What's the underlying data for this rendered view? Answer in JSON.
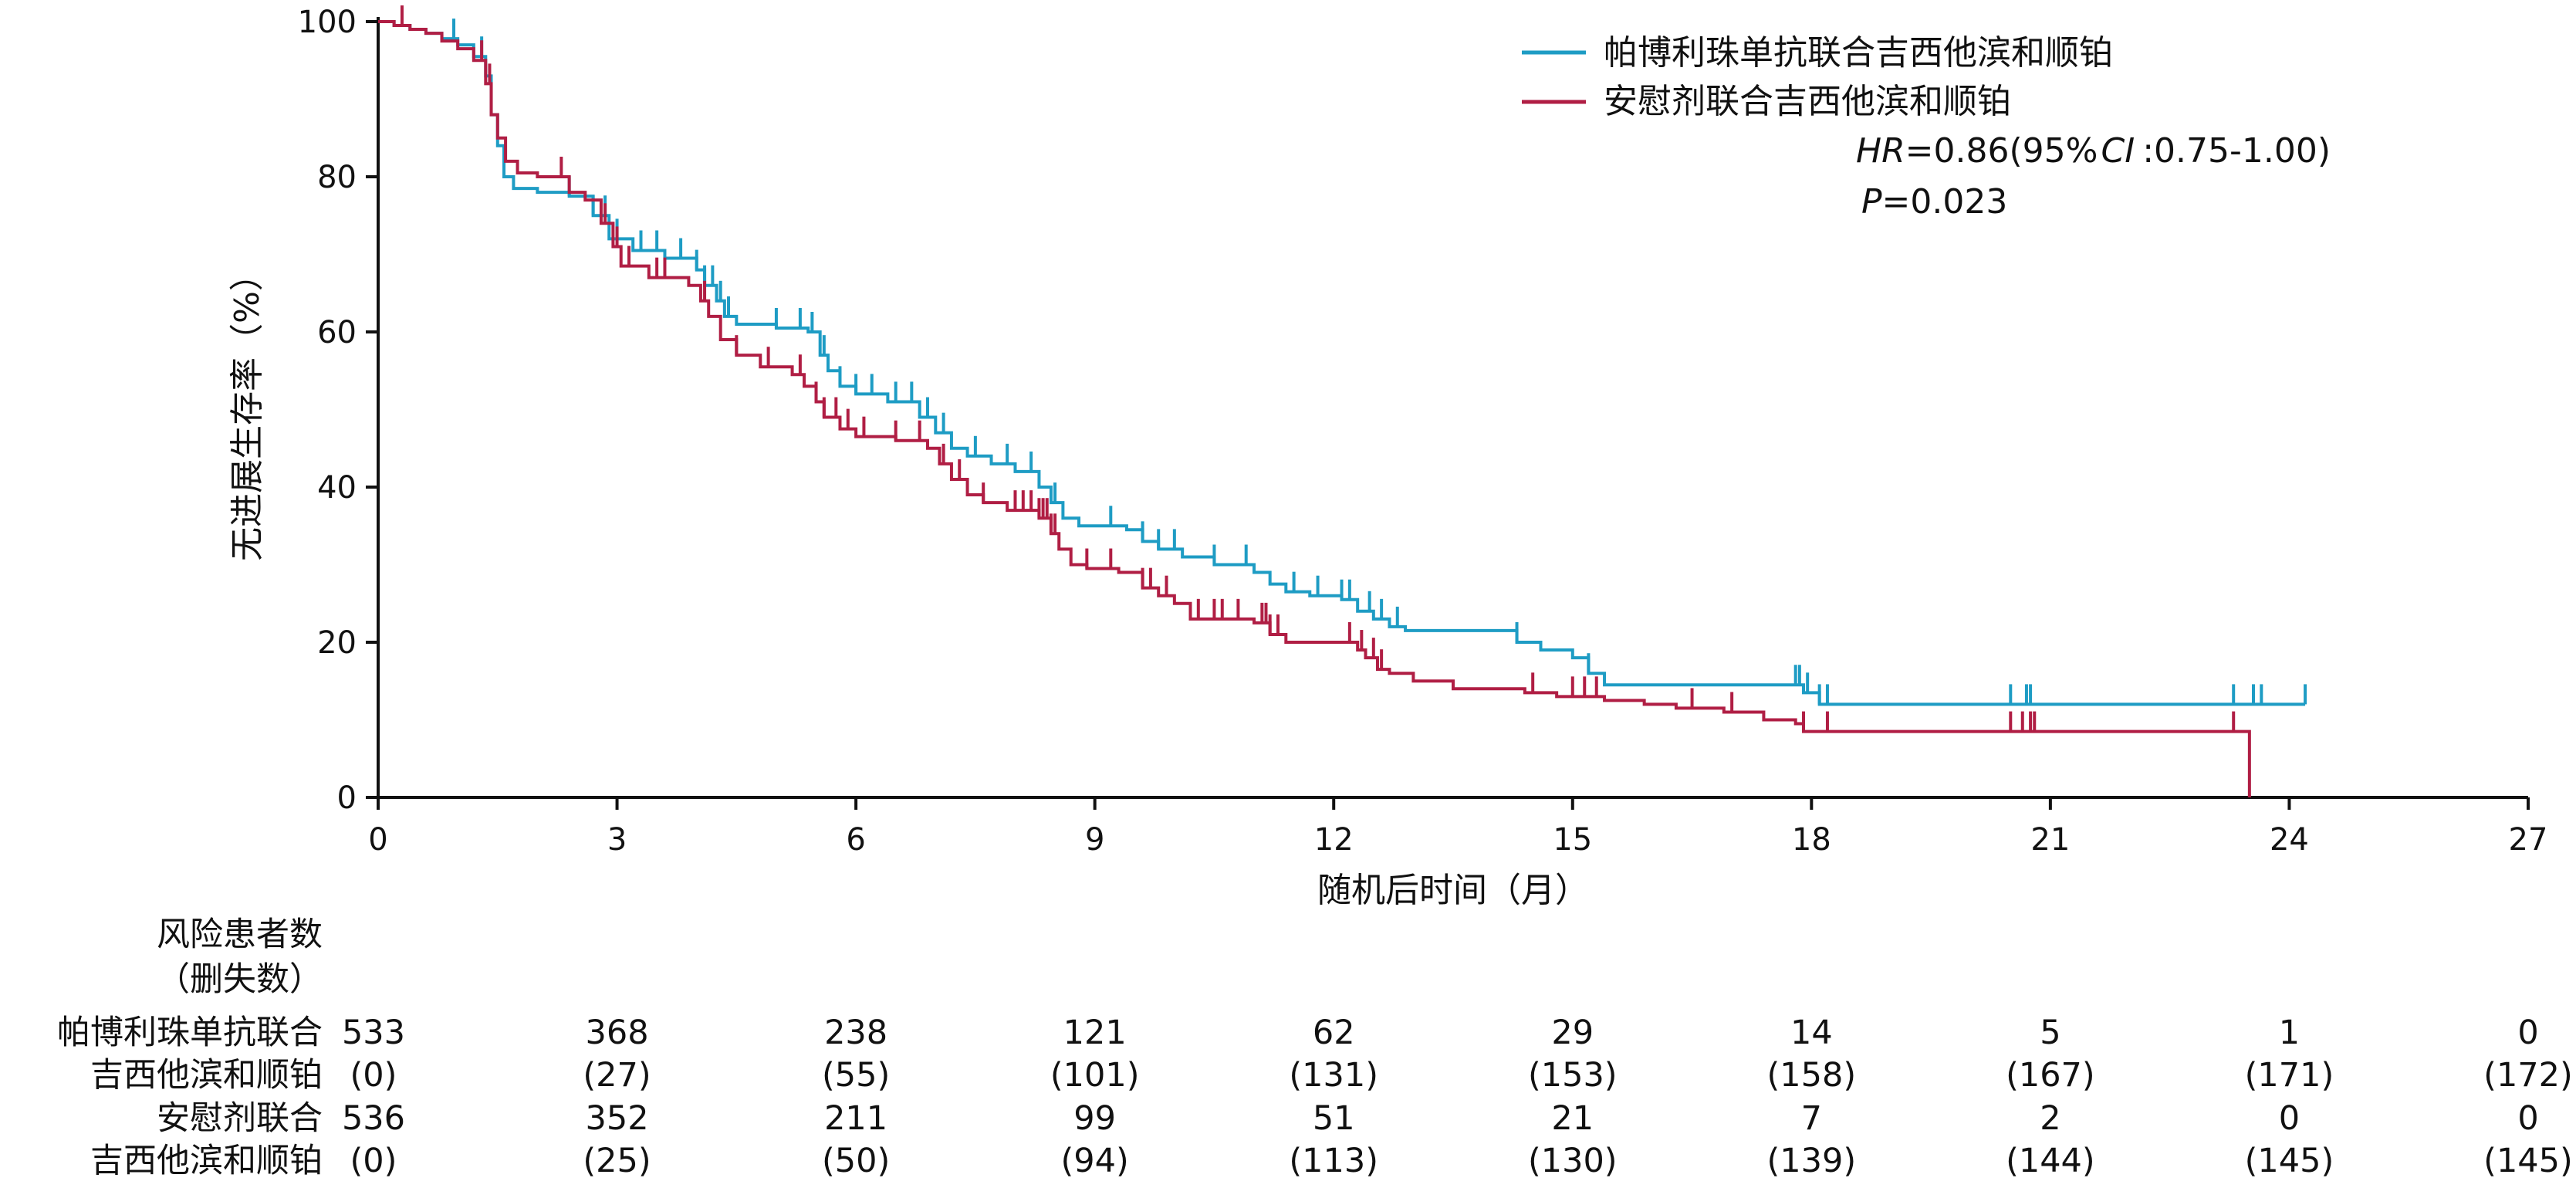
{
  "chart_data": {
    "type": "line",
    "subtype": "kaplan-meier",
    "xlabel": "随机后时间（月）",
    "ylabel": "无进展生存率（%）",
    "xlim": [
      0,
      27
    ],
    "ylim": [
      0,
      100
    ],
    "xticks": [
      0,
      3,
      6,
      9,
      12,
      15,
      18,
      21,
      24,
      27
    ],
    "yticks": [
      0,
      20,
      40,
      60,
      80,
      100
    ],
    "legend_position": "top-right",
    "series": [
      {
        "name": "帕博利珠单抗联合吉西他滨和顺铂",
        "color": "#1e9cc4",
        "steps": [
          [
            0,
            100
          ],
          [
            0.2,
            99.5
          ],
          [
            0.4,
            99
          ],
          [
            0.6,
            98.5
          ],
          [
            0.8,
            97.8
          ],
          [
            1.0,
            97
          ],
          [
            1.2,
            95.5
          ],
          [
            1.35,
            93
          ],
          [
            1.42,
            88
          ],
          [
            1.5,
            84
          ],
          [
            1.58,
            80
          ],
          [
            1.7,
            78.5
          ],
          [
            2.0,
            78
          ],
          [
            2.4,
            77.5
          ],
          [
            2.7,
            75
          ],
          [
            2.9,
            72
          ],
          [
            3.2,
            70.5
          ],
          [
            3.6,
            69.5
          ],
          [
            4.0,
            68
          ],
          [
            4.1,
            66
          ],
          [
            4.25,
            64
          ],
          [
            4.35,
            62
          ],
          [
            4.5,
            61
          ],
          [
            5.0,
            60.5
          ],
          [
            5.4,
            60
          ],
          [
            5.55,
            57
          ],
          [
            5.65,
            55
          ],
          [
            5.8,
            53
          ],
          [
            6.0,
            52
          ],
          [
            6.4,
            51
          ],
          [
            6.8,
            49
          ],
          [
            7.0,
            47
          ],
          [
            7.2,
            45
          ],
          [
            7.4,
            44
          ],
          [
            7.7,
            43
          ],
          [
            8.0,
            42
          ],
          [
            8.3,
            40
          ],
          [
            8.45,
            38
          ],
          [
            8.6,
            36
          ],
          [
            8.8,
            35
          ],
          [
            9.4,
            34.5
          ],
          [
            9.6,
            33
          ],
          [
            9.8,
            32
          ],
          [
            10.1,
            31
          ],
          [
            10.5,
            30
          ],
          [
            11.0,
            29
          ],
          [
            11.2,
            27.5
          ],
          [
            11.4,
            26.5
          ],
          [
            11.7,
            26
          ],
          [
            12.1,
            25.5
          ],
          [
            12.3,
            24
          ],
          [
            12.5,
            23
          ],
          [
            12.7,
            22
          ],
          [
            12.9,
            21.5
          ],
          [
            14.0,
            21.5
          ],
          [
            14.3,
            20
          ],
          [
            14.6,
            19
          ],
          [
            15.0,
            18
          ],
          [
            15.2,
            16
          ],
          [
            15.4,
            14.5
          ],
          [
            16.0,
            14.5
          ],
          [
            17.8,
            14.5
          ],
          [
            17.9,
            13.5
          ],
          [
            18.1,
            12
          ],
          [
            21.0,
            12
          ],
          [
            24.2,
            12
          ]
        ],
        "end": 24.2,
        "censor": [
          0.95,
          1.3,
          2.4,
          2.7,
          2.85,
          3.0,
          3.3,
          3.5,
          3.8,
          4.0,
          4.1,
          4.2,
          4.3,
          4.4,
          5.0,
          5.3,
          5.45,
          5.6,
          5.8,
          6.0,
          6.2,
          6.5,
          6.7,
          6.9,
          7.1,
          7.5,
          7.9,
          8.2,
          8.5,
          9.2,
          9.6,
          9.8,
          10.0,
          10.5,
          10.9,
          11.5,
          11.8,
          12.1,
          12.2,
          12.45,
          12.6,
          12.8,
          14.3,
          15.2,
          17.8,
          17.85,
          17.95,
          18.1,
          18.2,
          20.5,
          20.7,
          20.75,
          23.3,
          23.55,
          23.65,
          24.2
        ]
      },
      {
        "name": "安慰剂联合吉西他滨和顺铂",
        "color": "#b01e44",
        "steps": [
          [
            0,
            100
          ],
          [
            0.2,
            99.5
          ],
          [
            0.4,
            99
          ],
          [
            0.6,
            98.5
          ],
          [
            0.8,
            97.5
          ],
          [
            1.0,
            96.5
          ],
          [
            1.2,
            95
          ],
          [
            1.35,
            92
          ],
          [
            1.42,
            88
          ],
          [
            1.5,
            85
          ],
          [
            1.6,
            82
          ],
          [
            1.75,
            80.5
          ],
          [
            2.0,
            80
          ],
          [
            2.4,
            78
          ],
          [
            2.6,
            77
          ],
          [
            2.8,
            74
          ],
          [
            2.95,
            71
          ],
          [
            3.05,
            68.5
          ],
          [
            3.4,
            67
          ],
          [
            3.9,
            66
          ],
          [
            4.05,
            64
          ],
          [
            4.15,
            62
          ],
          [
            4.3,
            59
          ],
          [
            4.5,
            57
          ],
          [
            4.8,
            55.5
          ],
          [
            5.2,
            54.5
          ],
          [
            5.35,
            53
          ],
          [
            5.5,
            51
          ],
          [
            5.6,
            49
          ],
          [
            5.8,
            47.5
          ],
          [
            6.0,
            46.5
          ],
          [
            6.5,
            46
          ],
          [
            6.9,
            45
          ],
          [
            7.05,
            43
          ],
          [
            7.2,
            41
          ],
          [
            7.4,
            39
          ],
          [
            7.6,
            38
          ],
          [
            7.9,
            37
          ],
          [
            8.3,
            36
          ],
          [
            8.45,
            34
          ],
          [
            8.55,
            32
          ],
          [
            8.7,
            30
          ],
          [
            8.9,
            29.5
          ],
          [
            9.3,
            29
          ],
          [
            9.6,
            27
          ],
          [
            9.8,
            26
          ],
          [
            10.0,
            25
          ],
          [
            10.2,
            23
          ],
          [
            10.6,
            23
          ],
          [
            11.0,
            22.5
          ],
          [
            11.2,
            21
          ],
          [
            11.4,
            20
          ],
          [
            12.0,
            20
          ],
          [
            12.3,
            19
          ],
          [
            12.4,
            18
          ],
          [
            12.55,
            16.5
          ],
          [
            12.7,
            16
          ],
          [
            13.0,
            15
          ],
          [
            13.5,
            14
          ],
          [
            14.0,
            14
          ],
          [
            14.4,
            13.5
          ],
          [
            14.8,
            13
          ],
          [
            15.4,
            12.5
          ],
          [
            15.9,
            12
          ],
          [
            16.3,
            11.5
          ],
          [
            16.9,
            11
          ],
          [
            17.4,
            10
          ],
          [
            17.8,
            9.5
          ],
          [
            17.9,
            8.5
          ],
          [
            21.0,
            8.5
          ],
          [
            23.3,
            8.5
          ],
          [
            23.5,
            8.5
          ]
        ],
        "drop": {
          "x": 23.5,
          "to": 0
        },
        "end": 23.5,
        "censor": [
          0.3,
          1.3,
          1.4,
          2.3,
          2.85,
          3.0,
          3.15,
          3.5,
          3.6,
          4.1,
          4.5,
          4.9,
          5.3,
          5.5,
          5.6,
          5.75,
          5.9,
          6.1,
          6.5,
          6.8,
          7.1,
          7.3,
          7.6,
          8.0,
          8.1,
          8.2,
          8.3,
          8.35,
          8.4,
          8.45,
          8.5,
          8.9,
          9.2,
          9.6,
          9.7,
          9.9,
          10.3,
          10.5,
          10.6,
          10.8,
          11.1,
          11.15,
          11.2,
          11.3,
          12.2,
          12.35,
          12.5,
          12.6,
          14.5,
          15.0,
          15.15,
          15.3,
          16.5,
          17.0,
          17.9,
          18.2,
          20.5,
          20.65,
          20.75,
          20.8,
          23.3
        ]
      }
    ],
    "annotations": {
      "hr_label": "HR",
      "hr_value": "=0.86(95%",
      "ci_label": "CI",
      "ci_value": ":0.75-1.00)",
      "p_label": "P",
      "p_value": "=0.023"
    }
  },
  "risk_table": {
    "title_line1": "风险患者数",
    "title_line2": "（删失数）",
    "groups": [
      {
        "label_line1": "帕博利珠单抗联合",
        "label_line2": "吉西他滨和顺铂",
        "at_risk": [
          "533",
          "368",
          "238",
          "121",
          "62",
          "29",
          "14",
          "5",
          "1",
          "0"
        ],
        "censored": [
          "(0)",
          "(27)",
          "(55)",
          "(101)",
          "(131)",
          "(153)",
          "(158)",
          "(167)",
          "(171)",
          "(172)"
        ]
      },
      {
        "label_line1": "安慰剂联合",
        "label_line2": "吉西他滨和顺铂",
        "at_risk": [
          "536",
          "352",
          "211",
          "99",
          "51",
          "21",
          "7",
          "2",
          "0",
          "0"
        ],
        "censored": [
          "(0)",
          "(25)",
          "(50)",
          "(94)",
          "(113)",
          "(130)",
          "(139)",
          "(144)",
          "(145)",
          "(145)"
        ]
      }
    ]
  }
}
